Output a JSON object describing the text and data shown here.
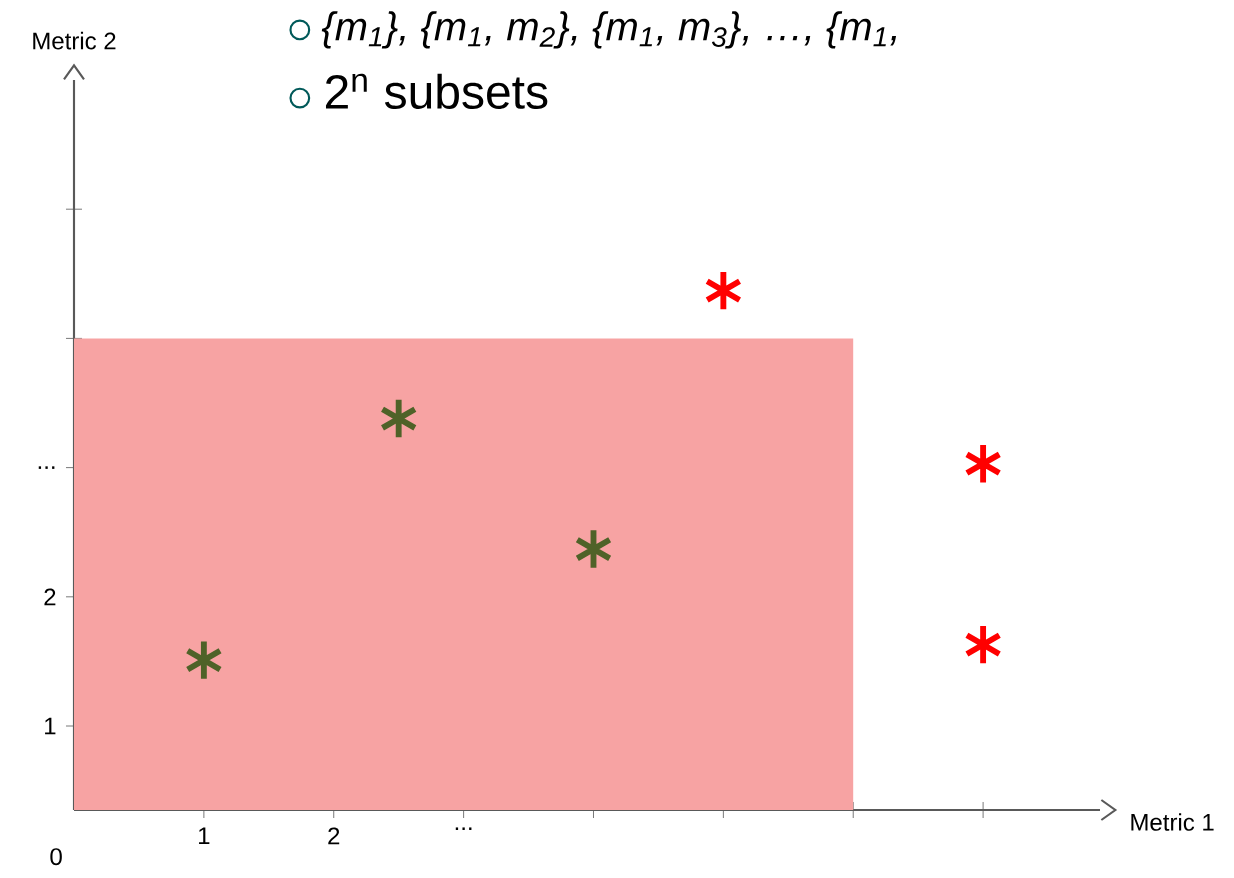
{
  "chart_data": {
    "type": "scatter",
    "xlabel": "Metric 1",
    "ylabel": "Metric 2",
    "annotations": [
      "{m$_{1}$}, {m$_{1}$, m$_{2}$}, {m$_{1}$, m$_{3}$}, …, {m$_{1}$,",
      "2$^{n}$ subsets",
      "0"
    ],
    "xlim": [
      0,
      7.9
    ],
    "ylim": [
      0.35,
      6
    ],
    "xticks": [
      1,
      2,
      {
        "value": 3,
        "label": "..."
      },
      {
        "value": 4,
        "label": null
      },
      {
        "value": 5,
        "label": null
      },
      {
        "value": 6,
        "label": null
      },
      {
        "value": 7,
        "label": null
      }
    ],
    "yticks": [
      1,
      2,
      {
        "value": 3,
        "label": "..."
      },
      {
        "value": 4,
        "label": null
      },
      {
        "value": 5,
        "label": null
      }
    ],
    "grid": false,
    "series": [
      {
        "type": "area",
        "color": "#f7a3a3",
        "x": [
          0,
          6
        ],
        "values": [
          4,
          4
        ]
      },
      {
        "color": "#4f6228",
        "marker": "cross",
        "x": [
          1,
          2.5,
          4
        ],
        "values": [
          1.51,
          3.38,
          2.37
        ]
      },
      {
        "color": "#ff0000",
        "marker": "cross",
        "x": [
          5,
          7,
          7
        ],
        "values": [
          4.37,
          3.03,
          1.63
        ]
      }
    ]
  }
}
